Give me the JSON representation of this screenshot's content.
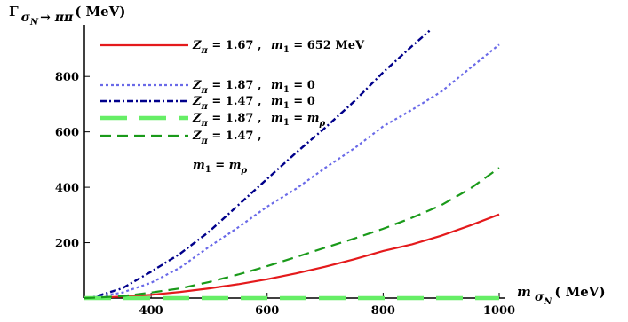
{
  "chart_data": {
    "type": "line",
    "ylabel": {
      "main": "Γ",
      "sub": "σ",
      "subsub": "N",
      "sub_tail": "→ ππ",
      "unit": "( MeV)"
    },
    "xlabel": {
      "main": "m",
      "sub": "σ",
      "subsub": "N",
      "unit": "( MeV)"
    },
    "xlim": [
      285,
      1000
    ],
    "ylim": [
      0,
      980
    ],
    "x_ticks": [
      400,
      600,
      800,
      1000
    ],
    "y_ticks": [
      200,
      400,
      600,
      800
    ],
    "x_tick_labels": [
      "400",
      "600",
      "800",
      "1000"
    ],
    "y_tick_labels": [
      "200",
      "400",
      "600",
      "800"
    ],
    "grid": false,
    "legend_position": "top-left",
    "series": [
      {
        "name": "Z_π = 1.67 , m_1 = 652 MeV",
        "color": "#e41a1c",
        "dash": "solid",
        "x": [
          285,
          300,
          350,
          400,
          450,
          500,
          550,
          600,
          650,
          700,
          750,
          800,
          850,
          900,
          950,
          1000
        ],
        "y": [
          0,
          1,
          5,
          12,
          22,
          35,
          50,
          68,
          89,
          113,
          140,
          170,
          194,
          225,
          262,
          302
        ]
      },
      {
        "name": "Z_π = 1.87 , m_1 = 0",
        "color": "#6a6ae8",
        "dash": "dotted",
        "x": [
          285,
          300,
          350,
          400,
          450,
          500,
          550,
          600,
          650,
          700,
          750,
          800,
          850,
          900,
          950,
          1000
        ],
        "y": [
          0,
          2,
          20,
          55,
          110,
          185,
          255,
          330,
          395,
          470,
          540,
          620,
          680,
          745,
          830,
          915
        ]
      },
      {
        "name": "Z_π = 1.47 , m_1 = 0",
        "color": "#00008b",
        "dash": "dashdot",
        "x": [
          285,
          300,
          350,
          400,
          450,
          500,
          550,
          600,
          650,
          700,
          750,
          800,
          850,
          880
        ],
        "y": [
          0,
          3,
          35,
          95,
          160,
          240,
          335,
          430,
          525,
          615,
          710,
          815,
          910,
          965
        ]
      },
      {
        "name": "Z_π = 1.87 , m_1 = m_ρ",
        "color": "#66ee66",
        "dash": "longdash",
        "x": [
          285,
          1000
        ],
        "y": [
          0,
          0
        ]
      },
      {
        "name": "Z_π = 1.47 , m_1 = m_ρ",
        "color": "#1a9a1a",
        "dash": "dashed",
        "x": [
          285,
          300,
          350,
          400,
          450,
          500,
          550,
          600,
          650,
          700,
          750,
          800,
          850,
          900,
          950,
          1000
        ],
        "y": [
          0,
          1,
          7,
          20,
          35,
          58,
          85,
          115,
          148,
          182,
          215,
          250,
          290,
          335,
          395,
          470
        ]
      }
    ]
  },
  "legend": [
    {
      "z": "1.67",
      "m": "652 MeV",
      "m_sub": ""
    },
    {
      "z": "1.87",
      "m": "0",
      "m_sub": ""
    },
    {
      "z": "1.47",
      "m": "0",
      "m_sub": ""
    },
    {
      "z": "1.87",
      "m": "m",
      "m_sub": "ρ"
    },
    {
      "z": "1.47",
      "m": "m",
      "m_sub": "ρ"
    }
  ],
  "legend_symbols": {
    "z": "Z",
    "z_sub": "π",
    "m": "m",
    "m_sub": "1",
    "eq": "=",
    "comma": ","
  }
}
